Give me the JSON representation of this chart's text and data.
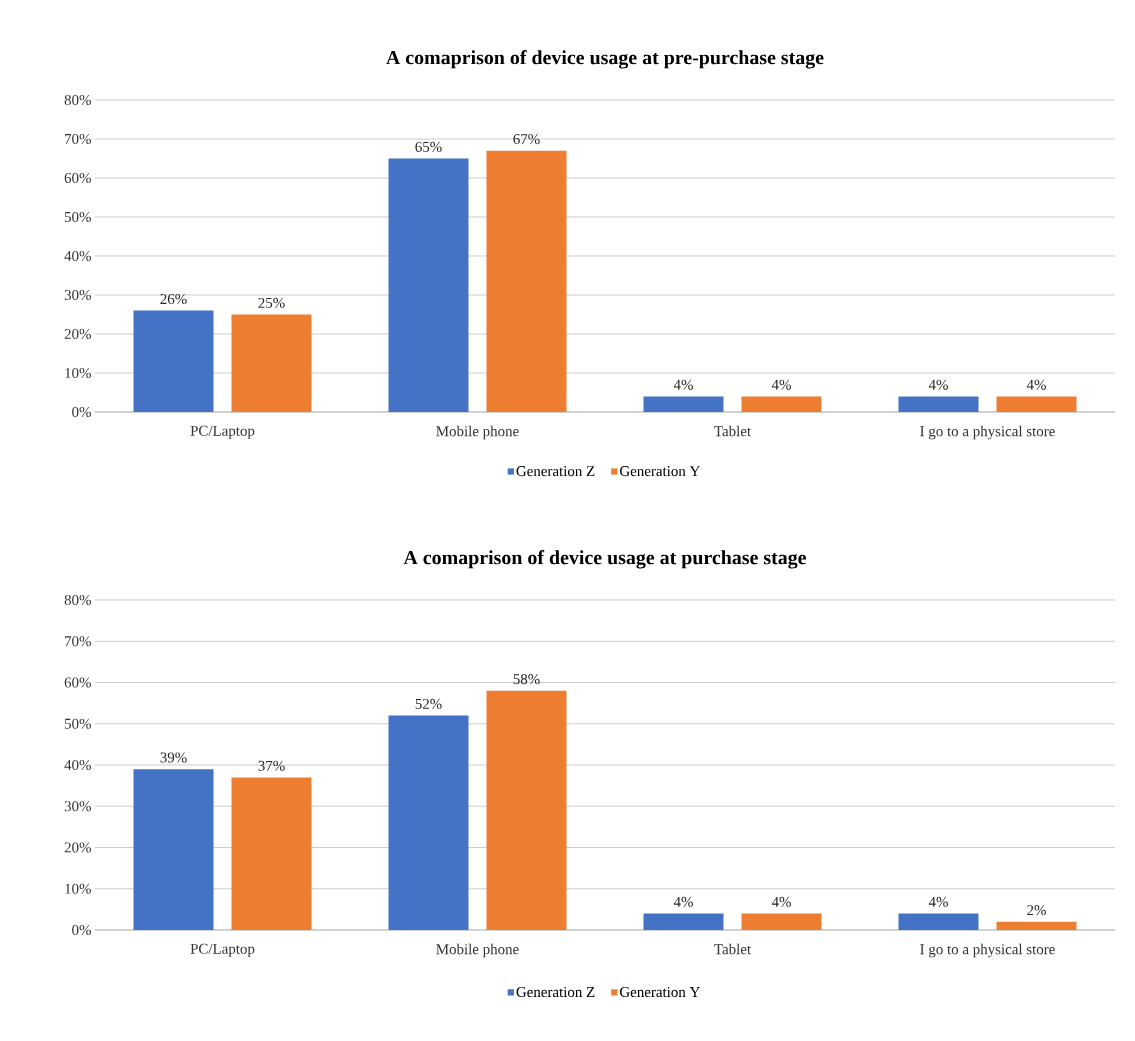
{
  "chart_data": [
    {
      "type": "bar",
      "title": "A comaprison of device usage at pre-purchase stage",
      "categories": [
        "PC/Laptop",
        "Mobile phone",
        "Tablet",
        "I go to a physical store"
      ],
      "series": [
        {
          "name": "Generation Z",
          "color": "#4472c4",
          "values": [
            26,
            65,
            4,
            4
          ],
          "value_labels": [
            "26%",
            "65%",
            "4%",
            "4%"
          ]
        },
        {
          "name": "Generation Y",
          "color": "#ed7d31",
          "values": [
            25,
            67,
            4,
            4
          ],
          "value_labels": [
            "25%",
            "67%",
            "4%",
            "4%"
          ]
        }
      ],
      "ylim": [
        0,
        80
      ],
      "yticks": [
        {
          "value": 0,
          "label": "0%"
        },
        {
          "value": 10,
          "label": "10%"
        },
        {
          "value": 20,
          "label": "20%"
        },
        {
          "value": 30,
          "label": "30%"
        },
        {
          "value": 40,
          "label": "40%"
        },
        {
          "value": 50,
          "label": "50%"
        },
        {
          "value": 60,
          "label": "60%"
        },
        {
          "value": 70,
          "label": "70%"
        },
        {
          "value": 80,
          "label": "80%"
        }
      ],
      "grid": "y",
      "legend": "bottom"
    },
    {
      "type": "bar",
      "title": "A comaprison of device usage at purchase stage",
      "categories": [
        "PC/Laptop",
        "Mobile phone",
        "Tablet",
        "I go to a physical store"
      ],
      "series": [
        {
          "name": "Generation Z",
          "color": "#4472c4",
          "values": [
            39,
            52,
            4,
            4
          ],
          "value_labels": [
            "39%",
            "52%",
            "4%",
            "4%"
          ]
        },
        {
          "name": "Generation Y",
          "color": "#ed7d31",
          "values": [
            37,
            58,
            4,
            2
          ],
          "value_labels": [
            "37%",
            "58%",
            "4%",
            "2%"
          ]
        }
      ],
      "ylim": [
        0,
        80
      ],
      "yticks": [
        {
          "value": 0,
          "label": "0%"
        },
        {
          "value": 10,
          "label": "10%"
        },
        {
          "value": 20,
          "label": "20%"
        },
        {
          "value": 30,
          "label": "30%"
        },
        {
          "value": 40,
          "label": "40%"
        },
        {
          "value": 50,
          "label": "50%"
        },
        {
          "value": 60,
          "label": "60%"
        },
        {
          "value": 70,
          "label": "70%"
        },
        {
          "value": 80,
          "label": "80%"
        }
      ],
      "grid": "y",
      "legend": "bottom"
    }
  ]
}
